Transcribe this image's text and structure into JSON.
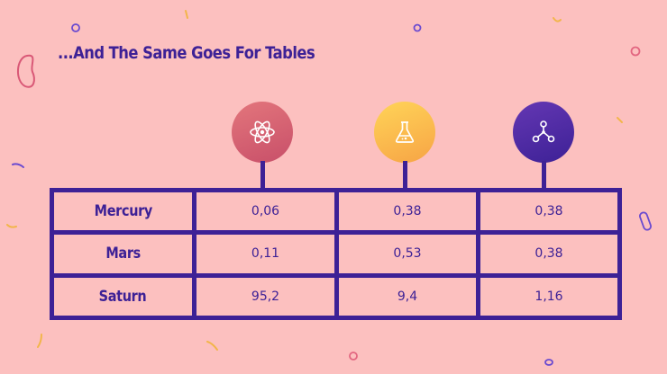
{
  "title": "...And The Same Goes For Tables",
  "columns": [
    {
      "icon": "atom-icon",
      "color_from": "#e3767c",
      "color_to": "#c84f69"
    },
    {
      "icon": "flask-icon",
      "color_from": "#ffd458",
      "color_to": "#f7a445"
    },
    {
      "icon": "molecule-icon",
      "color_from": "#6437b3",
      "color_to": "#3d2196"
    }
  ],
  "rows": [
    {
      "label": "Mercury",
      "values": [
        "0,06",
        "0,38",
        "0,38"
      ]
    },
    {
      "label": "Mars",
      "values": [
        "0,11",
        "0,53",
        "0,38"
      ]
    },
    {
      "label": "Saturn",
      "values": [
        "95,2",
        "9,4",
        "1,16"
      ]
    }
  ],
  "colors": {
    "background": "#fcc0bf",
    "accent": "#3d2196"
  }
}
